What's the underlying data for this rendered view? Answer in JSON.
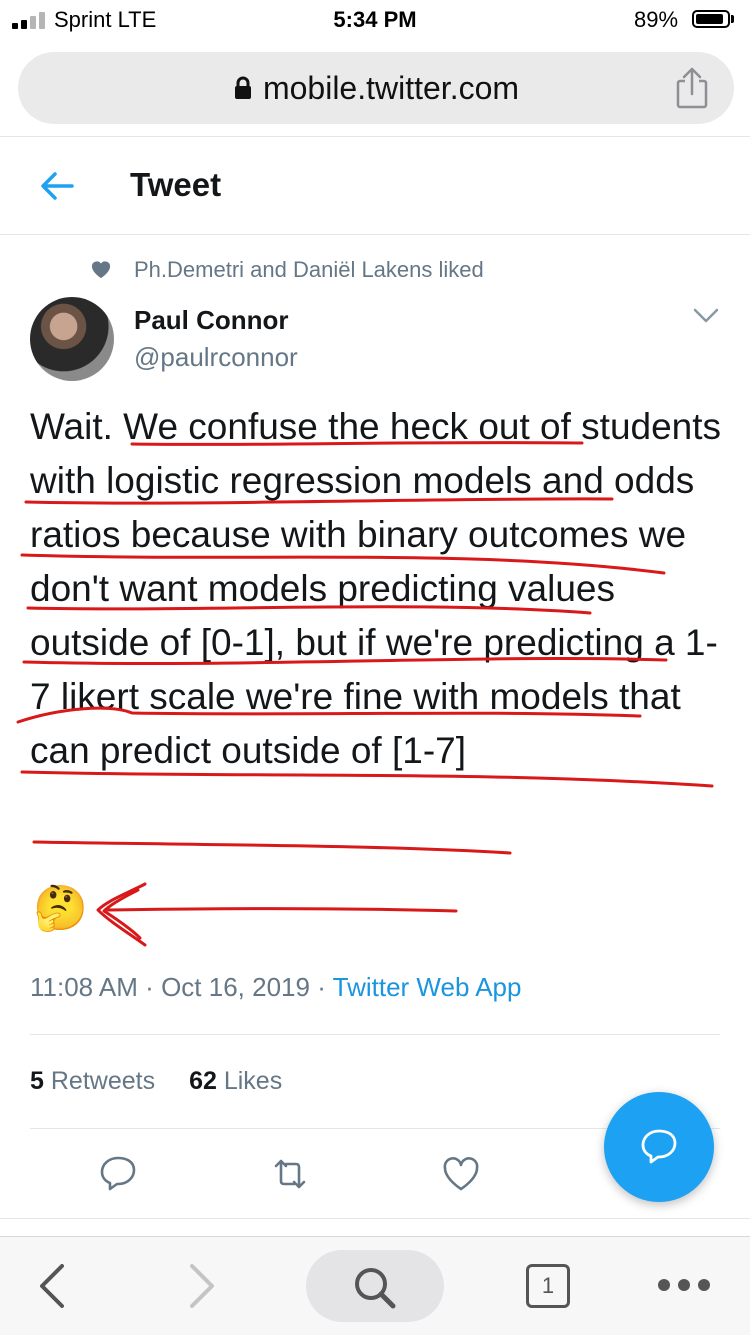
{
  "status_bar": {
    "carrier": "Sprint LTE",
    "time": "5:34 PM",
    "battery_percent": "89%",
    "battery_level": 0.89,
    "signal_bars": 2
  },
  "browser": {
    "url": "mobile.twitter.com",
    "tab_count": "1"
  },
  "header": {
    "title": "Tweet"
  },
  "tweet": {
    "social_context": "Ph.Demetri and Daniël Lakens liked",
    "author_name": "Paul Connor",
    "author_handle": "@paulrconnor",
    "text": "Wait. We confuse the heck out of students with logistic regression models and odds ratios because with binary outcomes we don't want models predicting values outside of [0-1], but if we're predicting a 1-7 likert scale we're fine with models that can predict outside of [1-7]",
    "emoji": "🤔",
    "time": "11:08 AM",
    "separator": "·",
    "date": "Oct 16, 2019",
    "source": "Twitter Web App",
    "retweets_count": "5",
    "retweets_label": "Retweets",
    "likes_count": "62",
    "likes_label": "Likes"
  },
  "colors": {
    "accent": "#1da1f2",
    "link": "#1b95e0",
    "muted": "#657786",
    "annotation": "#d9181a"
  },
  "icons": {
    "back": "arrow-left-icon",
    "more": "chevron-down-icon",
    "reply": "reply-icon",
    "retweet": "retweet-icon",
    "like": "heart-icon",
    "compose": "compose-reply-icon"
  }
}
